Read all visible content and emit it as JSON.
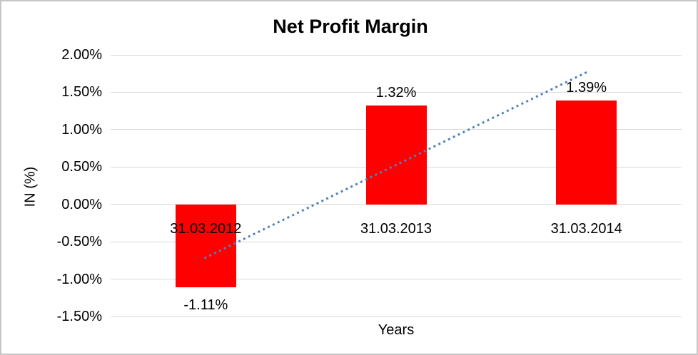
{
  "chart_data": {
    "type": "bar",
    "title": "Net Profit Margin",
    "xlabel": "Years",
    "ylabel": "IN (%)",
    "categories": [
      "31.03.2012",
      "31.03.2013",
      "31.03.2014"
    ],
    "values": [
      -1.11,
      1.32,
      1.39
    ],
    "value_labels": [
      "-1.11%",
      "1.32%",
      "1.39%"
    ],
    "yticks": [
      "2.00%",
      "1.50%",
      "1.00%",
      "0.50%",
      "0.00%",
      "-0.50%",
      "-1.00%",
      "-1.50%"
    ],
    "ylim": [
      -1.5,
      2.0
    ],
    "grid": "horizontal",
    "legend": "none",
    "bar_color": "#ff0000",
    "gridline_color": "#d9d9d9",
    "trendline": {
      "type": "linear",
      "style": "dotted",
      "color": "#4f81bd",
      "start_category_index": 0,
      "start_value": -0.72,
      "end_category_index": 2,
      "end_value": 1.78
    }
  }
}
